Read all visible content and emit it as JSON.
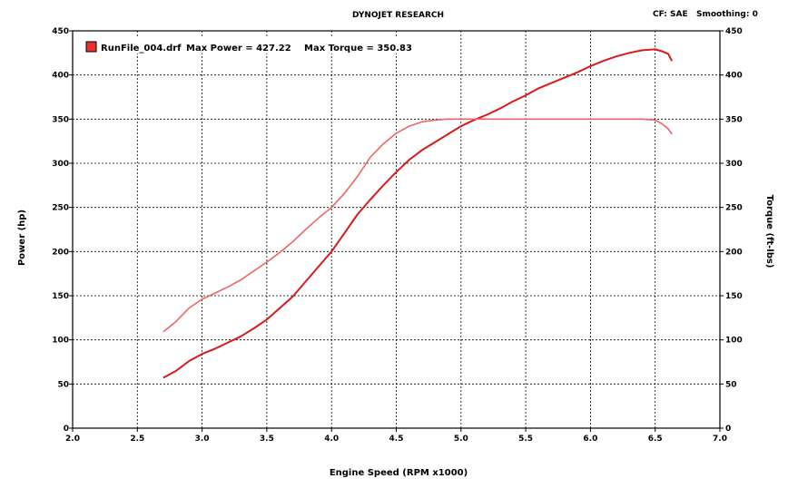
{
  "header": {
    "title": "DYNOJET RESEARCH",
    "cf": "CF: SAE",
    "smoothing": "Smoothing: 0"
  },
  "legend": {
    "file_label": "RunFile_004.drf",
    "max_power_label": "Max Power = 427.22",
    "max_torque_label": "Max Torque = 350.83"
  },
  "chart_data": {
    "type": "line",
    "title": "DYNOJET RESEARCH",
    "xlabel": "Engine Speed (RPM x1000)",
    "ylabel": "Power (hp)",
    "y2label": "Torque (ft-lbs)",
    "xlim": [
      2.0,
      7.0
    ],
    "ylim": [
      0,
      450
    ],
    "y2lim": [
      0,
      450
    ],
    "xticks": [
      "2.0",
      "2.5",
      "3.0",
      "3.5",
      "4.0",
      "4.5",
      "5.0",
      "5.5",
      "6.0",
      "6.5",
      "7.0"
    ],
    "yticks": [
      "0",
      "50",
      "100",
      "150",
      "200",
      "250",
      "300",
      "350",
      "400",
      "450"
    ],
    "y2ticks": [
      "0",
      "50",
      "100",
      "150",
      "200",
      "250",
      "300",
      "350",
      "400",
      "450"
    ],
    "grid": true,
    "legend_position": "top-left",
    "colors": {
      "power": "#d91a1a",
      "torque": "#ee6666",
      "grid": "#000000"
    },
    "series": [
      {
        "name": "Power",
        "axis": "left",
        "x": [
          2.7,
          2.8,
          2.9,
          3.0,
          3.1,
          3.2,
          3.3,
          3.4,
          3.5,
          3.6,
          3.7,
          3.8,
          3.9,
          4.0,
          4.1,
          4.2,
          4.3,
          4.4,
          4.5,
          4.6,
          4.7,
          4.8,
          4.9,
          5.0,
          5.1,
          5.2,
          5.3,
          5.4,
          5.5,
          5.6,
          5.7,
          5.8,
          5.9,
          6.0,
          6.1,
          6.2,
          6.3,
          6.4,
          6.5,
          6.55,
          6.6,
          6.63
        ],
        "values": [
          57,
          65,
          76,
          84,
          90,
          97,
          104,
          113,
          123,
          136,
          149,
          166,
          183,
          200,
          221,
          242,
          259,
          275,
          290,
          304,
          315,
          324,
          333,
          342,
          349,
          355,
          362,
          370,
          377,
          385,
          391,
          397,
          403,
          410,
          416,
          421,
          425,
          428,
          429,
          427,
          424,
          416
        ]
      },
      {
        "name": "Torque",
        "axis": "right",
        "x": [
          2.7,
          2.8,
          2.9,
          3.0,
          3.1,
          3.2,
          3.3,
          3.4,
          3.5,
          3.6,
          3.7,
          3.8,
          3.9,
          4.0,
          4.1,
          4.2,
          4.3,
          4.4,
          4.5,
          4.6,
          4.7,
          4.8,
          4.9,
          5.0,
          5.2,
          5.4,
          5.6,
          5.8,
          6.0,
          6.2,
          6.4,
          6.5,
          6.55,
          6.6,
          6.63
        ],
        "values": [
          109,
          121,
          136,
          146,
          153,
          160,
          168,
          178,
          188,
          199,
          211,
          225,
          238,
          250,
          266,
          285,
          307,
          322,
          334,
          342,
          347,
          349,
          350,
          350,
          350,
          350,
          350,
          350,
          350,
          350,
          350,
          349,
          345,
          339,
          333
        ]
      }
    ]
  }
}
